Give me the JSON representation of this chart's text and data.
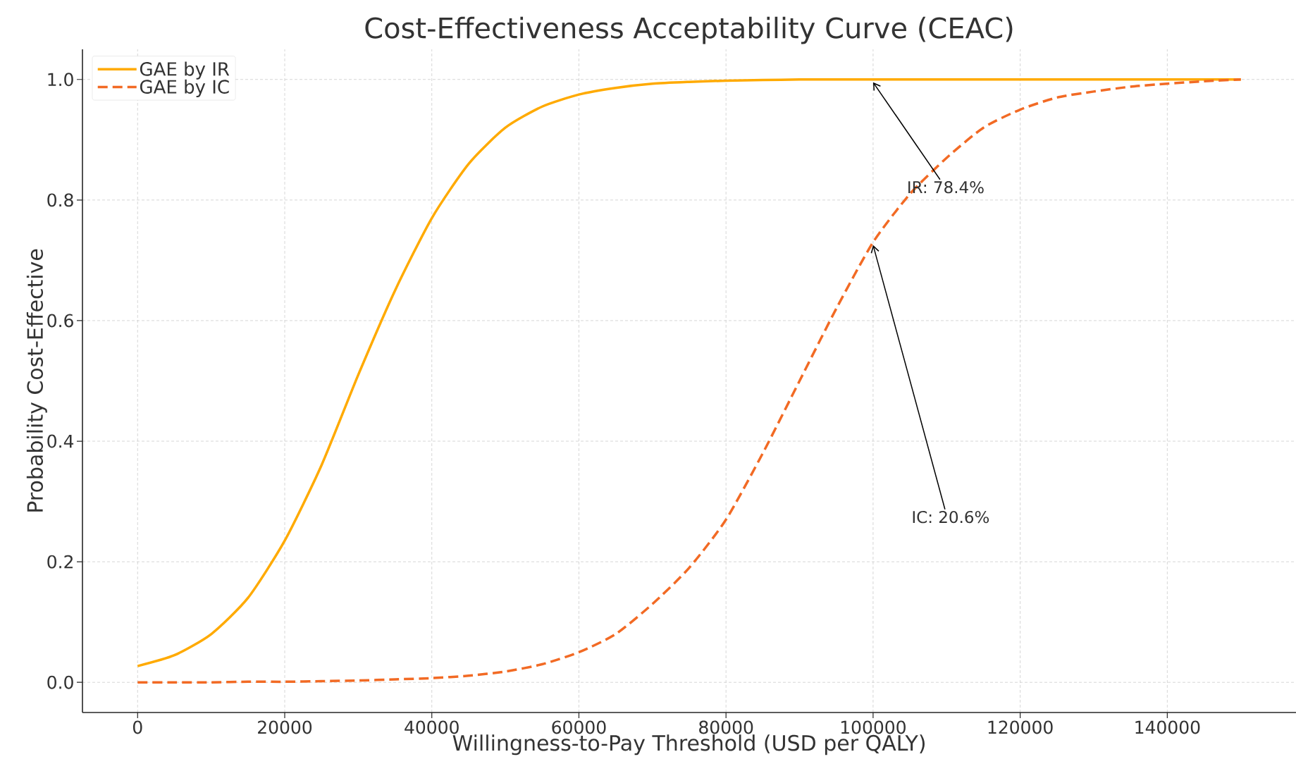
{
  "chart_data": {
    "type": "line",
    "title": "Cost-Effectiveness Acceptability Curve (CEAC)",
    "xlabel": "Willingness-to-Pay Threshold (USD per QALY)",
    "ylabel": "Probability Cost-Effective",
    "x": [
      0,
      5000,
      10000,
      15000,
      20000,
      25000,
      30000,
      35000,
      40000,
      45000,
      50000,
      55000,
      60000,
      65000,
      70000,
      75000,
      80000,
      85000,
      90000,
      95000,
      100000,
      105000,
      110000,
      115000,
      120000,
      125000,
      130000,
      135000,
      140000,
      145000,
      150000
    ],
    "series": [
      {
        "name": "GAE by IR",
        "color": "#ffaa00",
        "line_style": "solid",
        "values": [
          0.027,
          0.045,
          0.08,
          0.14,
          0.235,
          0.36,
          0.51,
          0.65,
          0.77,
          0.86,
          0.92,
          0.955,
          0.975,
          0.986,
          0.993,
          0.996,
          0.998,
          0.999,
          1.0,
          1.0,
          1.0,
          1.0,
          1.0,
          1.0,
          1.0,
          1.0,
          1.0,
          1.0,
          1.0,
          1.0,
          1.0
        ]
      },
      {
        "name": "GAE by IC",
        "color": "#f26a24",
        "line_style": "dashed",
        "values": [
          0,
          0,
          0,
          0.001,
          0.001,
          0.002,
          0.003,
          0.005,
          0.007,
          0.011,
          0.018,
          0.03,
          0.05,
          0.08,
          0.13,
          0.19,
          0.27,
          0.38,
          0.5,
          0.62,
          0.73,
          0.81,
          0.87,
          0.92,
          0.95,
          0.97,
          0.98,
          0.988,
          0.993,
          0.997,
          1.0
        ]
      }
    ],
    "xlim": [
      -7500,
      157500
    ],
    "ylim": [
      -0.05,
      1.05
    ],
    "xticks": [
      0,
      20000,
      40000,
      60000,
      80000,
      100000,
      120000,
      140000
    ],
    "yticks": [
      {
        "value": 0,
        "label": "0.0"
      },
      {
        "value": 0.2,
        "label": "0.2"
      },
      {
        "value": 0.4,
        "label": "0.4"
      },
      {
        "value": 0.6,
        "label": "0.6"
      },
      {
        "value": 0.8,
        "label": "0.8"
      },
      {
        "value": 1.0,
        "label": "1.0"
      }
    ],
    "grid": true,
    "legend": "top left",
    "marker": "none",
    "annotations": [
      {
        "text": "IR: 78.4%",
        "x": 100000,
        "y": 1.0
      },
      {
        "text": "IC: 20.6%",
        "x": 100000,
        "y": 0.73
      }
    ]
  }
}
